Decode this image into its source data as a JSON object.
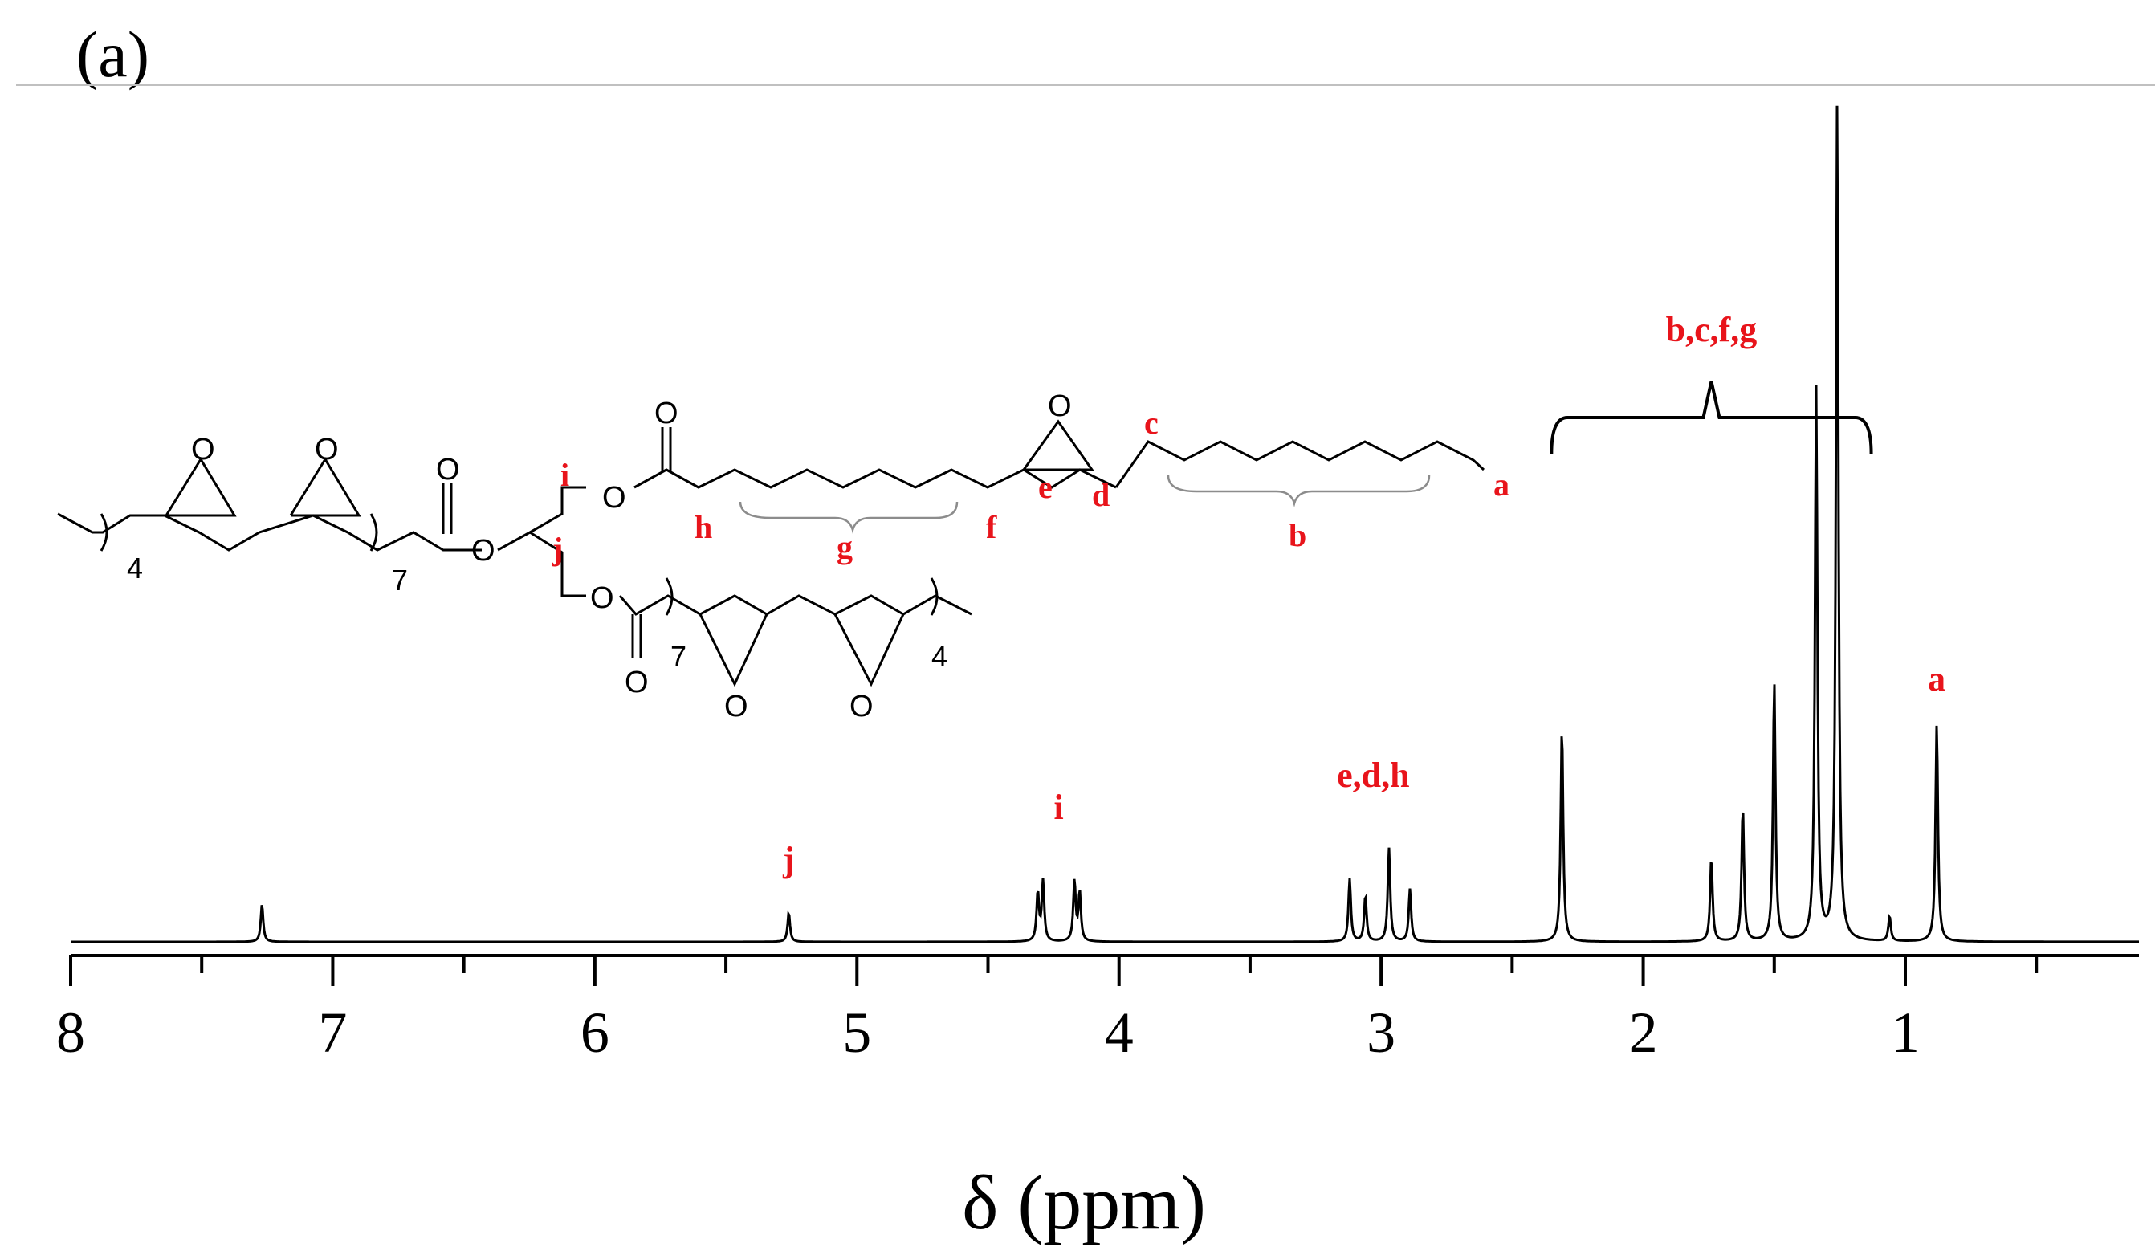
{
  "panel_label": "(a)",
  "chart_data": {
    "type": "line",
    "title": "",
    "xlabel": "δ (ppm)",
    "ylabel": "",
    "xlim": [
      8.0,
      0.0
    ],
    "x_reversed": true,
    "y_axis_visible": false,
    "grid": false,
    "x_tick_labels": [
      "8",
      "7",
      "6",
      "5",
      "4",
      "3",
      "2",
      "1"
    ],
    "x_tick_values": [
      8,
      7,
      6,
      5,
      4,
      3,
      2,
      1
    ],
    "x_minor_tick_step": 0.5,
    "series": [
      {
        "color": "#000000",
        "peaks": [
          {
            "ppm": 7.27,
            "height": 0.045
          },
          {
            "ppm": 5.26,
            "height": 0.035
          },
          {
            "ppm": 4.31,
            "height": 0.058
          },
          {
            "ppm": 4.29,
            "height": 0.072
          },
          {
            "ppm": 4.17,
            "height": 0.072
          },
          {
            "ppm": 4.15,
            "height": 0.058
          },
          {
            "ppm": 3.12,
            "height": 0.075
          },
          {
            "ppm": 3.06,
            "height": 0.055
          },
          {
            "ppm": 2.97,
            "height": 0.112
          },
          {
            "ppm": 2.89,
            "height": 0.063
          },
          {
            "ppm": 2.31,
            "height": 0.256
          },
          {
            "ppm": 1.74,
            "height": 0.1
          },
          {
            "ppm": 1.62,
            "height": 0.16
          },
          {
            "ppm": 1.5,
            "height": 0.31
          },
          {
            "ppm": 1.34,
            "height": 0.66
          },
          {
            "ppm": 1.26,
            "height": 1.0
          },
          {
            "ppm": 1.06,
            "height": 0.03
          },
          {
            "ppm": 0.88,
            "height": 0.26
          }
        ]
      }
    ],
    "annotations": [
      {
        "text": "j",
        "ppm": 5.26
      },
      {
        "text": "i",
        "ppm": 4.23
      },
      {
        "text": "e,d,h",
        "ppm": 3.03
      },
      {
        "text": "b,c,f,g",
        "ppm": 1.74,
        "bracket_ppm": [
          2.35,
          1.13
        ]
      },
      {
        "text": "a",
        "ppm": 0.88
      }
    ]
  },
  "structure": {
    "oxygen": "O",
    "repeat_7": "7",
    "repeat_4": "4",
    "labels": {
      "a": "a",
      "b": "b",
      "c": "c",
      "d": "d",
      "e": "e",
      "f": "f",
      "g": "g",
      "h": "h",
      "i": "i",
      "j": "j"
    }
  }
}
